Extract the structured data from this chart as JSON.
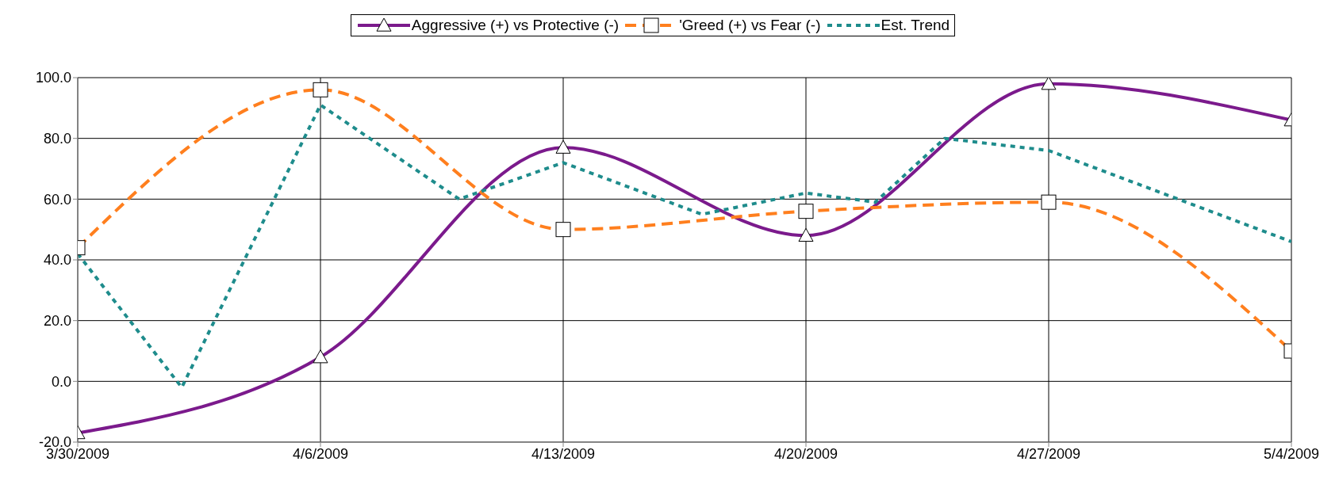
{
  "chart_data": {
    "type": "line",
    "legend": "top",
    "grid": true,
    "ylim": [
      -20,
      100
    ],
    "yticks": [
      {
        "value": -20,
        "label": "-20.0"
      },
      {
        "value": 0,
        "label": "0.0"
      },
      {
        "value": 20,
        "label": "20.0"
      },
      {
        "value": 40,
        "label": "40.0"
      },
      {
        "value": 60,
        "label": "60.0"
      },
      {
        "value": 80,
        "label": "80.0"
      },
      {
        "value": 100,
        "label": "100.0"
      }
    ],
    "xlim": [
      "2009-03-30",
      "2009-05-04"
    ],
    "xticks": [
      {
        "value": "2009-03-30",
        "label": "3/30/2009"
      },
      {
        "value": "2009-04-06",
        "label": "4/6/2009"
      },
      {
        "value": "2009-04-13",
        "label": "4/13/2009"
      },
      {
        "value": "2009-04-20",
        "label": "4/20/2009"
      },
      {
        "value": "2009-04-27",
        "label": "4/27/2009"
      },
      {
        "value": "2009-05-04",
        "label": "5/4/2009"
      }
    ],
    "series": [
      {
        "name": "Aggressive (+) vs Protective (-)",
        "color": "#7b1a8c",
        "marker": "triangle",
        "line_style": "solid",
        "x": [
          "2009-03-30",
          "2009-04-06",
          "2009-04-13",
          "2009-04-20",
          "2009-04-27",
          "2009-05-04"
        ],
        "values": [
          -17,
          8,
          77,
          48,
          98,
          86
        ]
      },
      {
        "name": "'Greed (+) vs Fear (-)",
        "color": "#ff7f1e",
        "marker": "square",
        "line_style": "dashed",
        "x": [
          "2009-03-30",
          "2009-04-06",
          "2009-04-13",
          "2009-04-20",
          "2009-04-27",
          "2009-05-04"
        ],
        "values": [
          44,
          96,
          50,
          56,
          59,
          10
        ]
      },
      {
        "name": "Est. Trend",
        "color": "#1e8c8c",
        "marker": "none",
        "line_style": "dotted",
        "x": [
          "2009-03-30",
          "2009-04-02",
          "2009-04-06",
          "2009-04-10",
          "2009-04-13",
          "2009-04-17",
          "2009-04-20",
          "2009-04-22",
          "2009-04-24",
          "2009-04-27",
          "2009-05-04"
        ],
        "values": [
          42,
          -2,
          91,
          60,
          72,
          55,
          62,
          59,
          80,
          76,
          46
        ]
      }
    ]
  }
}
